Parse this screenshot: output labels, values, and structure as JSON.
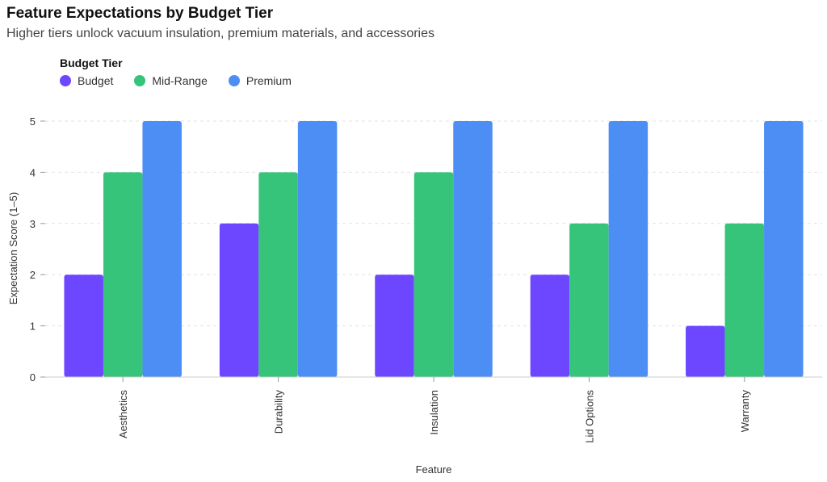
{
  "chart_data": {
    "type": "bar",
    "title": "Feature Expectations by Budget Tier",
    "subtitle": "Higher tiers unlock vacuum insulation, premium materials, and accessories",
    "xlabel": "Feature",
    "ylabel": "Expectation Score (1–5)",
    "ylim": [
      0,
      5
    ],
    "yticks": [
      0,
      1,
      2,
      3,
      4,
      5
    ],
    "grid": true,
    "legend": {
      "title": "Budget Tier",
      "placement": "top-left"
    },
    "categories": [
      "Aesthetics",
      "Durability",
      "Insulation",
      "Lid Options",
      "Warranty"
    ],
    "series": [
      {
        "name": "Budget",
        "color": "#6c47ff",
        "values": [
          2,
          3,
          2,
          2,
          1
        ]
      },
      {
        "name": "Mid-Range",
        "color": "#35c47a",
        "values": [
          4,
          4,
          4,
          3,
          3
        ]
      },
      {
        "name": "Premium",
        "color": "#4d8ef5",
        "values": [
          5,
          5,
          5,
          5,
          5
        ]
      }
    ]
  }
}
